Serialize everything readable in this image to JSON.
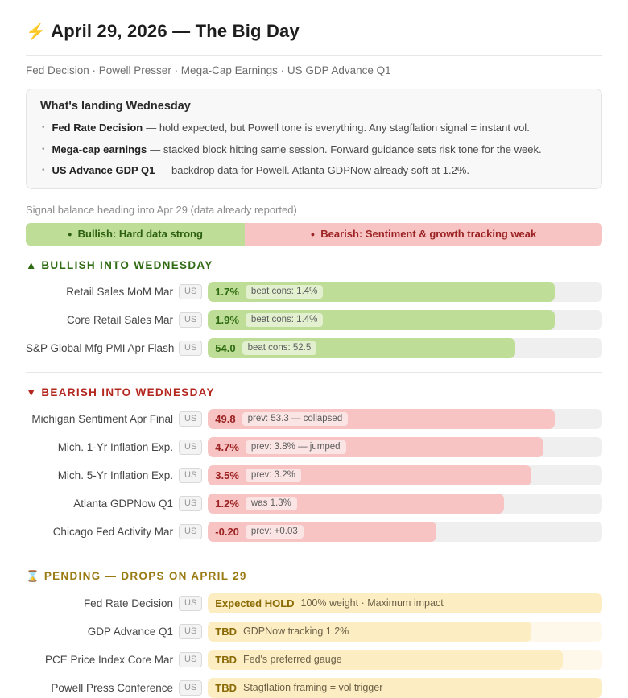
{
  "header": {
    "icon": "⚡",
    "title": "April 29, 2026 — The Big Day",
    "subtitle": "Fed Decision · Powell Presser · Mega-Cap Earnings · US GDP Advance Q1"
  },
  "landing_box": {
    "title": "What's landing Wednesday",
    "bullet_glyph": "•",
    "items": [
      {
        "lead": "Fed Rate Decision",
        "text": "— hold expected, but Powell tone is everything. Any stagflation signal = instant vol."
      },
      {
        "lead": "Mega-cap earnings",
        "text": "— stacked block hitting same session. Forward guidance sets risk tone for the week."
      },
      {
        "lead": "US Advance GDP Q1",
        "text": "— backdrop data for Powell. Atlanta GDPNow already soft at 1.2%."
      }
    ]
  },
  "signal_balance": {
    "caption": "Signal balance heading into Apr 29 (data already reported)",
    "dot_glyph": "●",
    "bullish_label": "Bullish: Hard data strong",
    "bullish_width": "38%",
    "bearish_label": "Bearish: Sentiment & growth tracking weak",
    "bearish_width": "62%"
  },
  "sections": [
    {
      "id": "bullish",
      "marker": "▲",
      "title": "BULLISH INTO WEDNESDAY",
      "rows": [
        {
          "label": "Retail Sales MoM Mar",
          "country": "US",
          "value": "1.7%",
          "note": "beat cons: 1.4%",
          "fill": "88%"
        },
        {
          "label": "Core Retail Sales Mar",
          "country": "US",
          "value": "1.9%",
          "note": "beat cons: 1.4%",
          "fill": "88%"
        },
        {
          "label": "S&P Global Mfg PMI Apr Flash",
          "country": "US",
          "value": "54.0",
          "note": "beat cons: 52.5",
          "fill": "78%"
        }
      ]
    },
    {
      "id": "bearish",
      "marker": "▼",
      "title": "BEARISH INTO WEDNESDAY",
      "rows": [
        {
          "label": "Michigan Sentiment Apr Final",
          "country": "US",
          "value": "49.8",
          "note": "prev: 53.3 — collapsed",
          "fill": "88%"
        },
        {
          "label": "Mich. 1-Yr Inflation Exp.",
          "country": "US",
          "value": "4.7%",
          "note": "prev: 3.8% — jumped",
          "fill": "85%"
        },
        {
          "label": "Mich. 5-Yr Inflation Exp.",
          "country": "US",
          "value": "3.5%",
          "note": "prev: 3.2%",
          "fill": "82%"
        },
        {
          "label": "Atlanta GDPNow Q1",
          "country": "US",
          "value": "1.2%",
          "note": "was 1.3%",
          "fill": "75%"
        },
        {
          "label": "Chicago Fed Activity Mar",
          "country": "US",
          "value": "-0.20",
          "note": "prev: +0.03",
          "fill": "58%"
        }
      ]
    },
    {
      "id": "pending",
      "marker": "⌛",
      "title": "PENDING — DROPS ON APRIL 29",
      "rows": [
        {
          "label": "Fed Rate Decision",
          "country": "US",
          "value": "Expected HOLD",
          "note": "100% weight · Maximum impact",
          "fill": "100%"
        },
        {
          "label": "GDP Advance Q1",
          "country": "US",
          "value": "TBD",
          "note": "GDPNow tracking 1.2%",
          "fill": "82%"
        },
        {
          "label": "PCE Price Index Core Mar",
          "country": "US",
          "value": "TBD",
          "note": "Fed's preferred gauge",
          "fill": "90%"
        },
        {
          "label": "Powell Press Conference",
          "country": "US",
          "value": "TBD",
          "note": "Stagflation framing = vol trigger",
          "fill": "100%"
        }
      ]
    }
  ],
  "colors": {
    "bullish_fill": "#bedd97",
    "bullish_text": "#2f6b11",
    "bearish_fill": "#f7c3c3",
    "bearish_text": "#9c2222",
    "pending_fill": "#fcedc2",
    "pending_track": "#fdf8ea",
    "pending_text": "#8a6a05",
    "track": "#efefef",
    "bearish_header": "#b3271f",
    "bullish_header": "#2f6b12",
    "pending_header": "#9a7b13"
  }
}
